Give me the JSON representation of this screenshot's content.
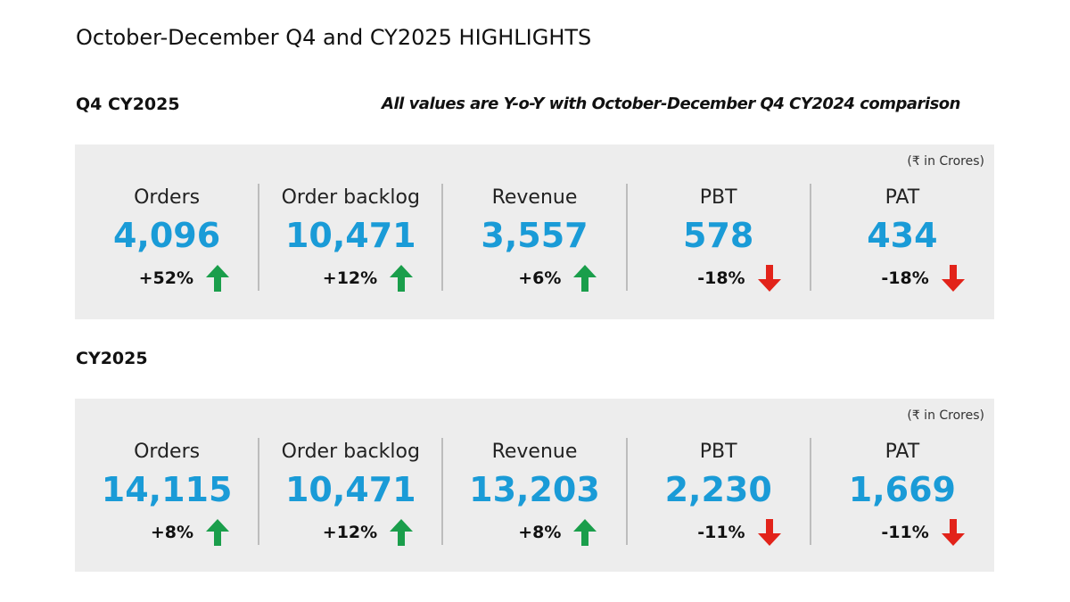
{
  "title": "October-December Q4 and CY2025 HIGHLIGHTS",
  "sections": [
    {
      "heading": "Q4 CY2025",
      "note": "All values are Y-o-Y with October-December Q4 CY2024 comparison",
      "unit": "(₹ in Crores)",
      "metrics": [
        {
          "label": "Orders",
          "value": "4,096",
          "change": "+52%",
          "direction": "up"
        },
        {
          "label": "Order backlog",
          "value": "10,471",
          "change": "+12%",
          "direction": "up"
        },
        {
          "label": "Revenue",
          "value": "3,557",
          "change": "+6%",
          "direction": "up"
        },
        {
          "label": "PBT",
          "value": "578",
          "change": "-18%",
          "direction": "down"
        },
        {
          "label": "PAT",
          "value": "434",
          "change": "-18%",
          "direction": "down"
        }
      ]
    },
    {
      "heading": "CY2025",
      "unit": "(₹ in Crores)",
      "metrics": [
        {
          "label": "Orders",
          "value": "14,115",
          "change": "+8%",
          "direction": "up"
        },
        {
          "label": "Order backlog",
          "value": "10,471",
          "change": "+12%",
          "direction": "up"
        },
        {
          "label": "Revenue",
          "value": "13,203",
          "change": "+8%",
          "direction": "up"
        },
        {
          "label": "PBT",
          "value": "2,230",
          "change": "-11%",
          "direction": "down"
        },
        {
          "label": "PAT",
          "value": "1,669",
          "change": "-11%",
          "direction": "down"
        }
      ]
    }
  ]
}
